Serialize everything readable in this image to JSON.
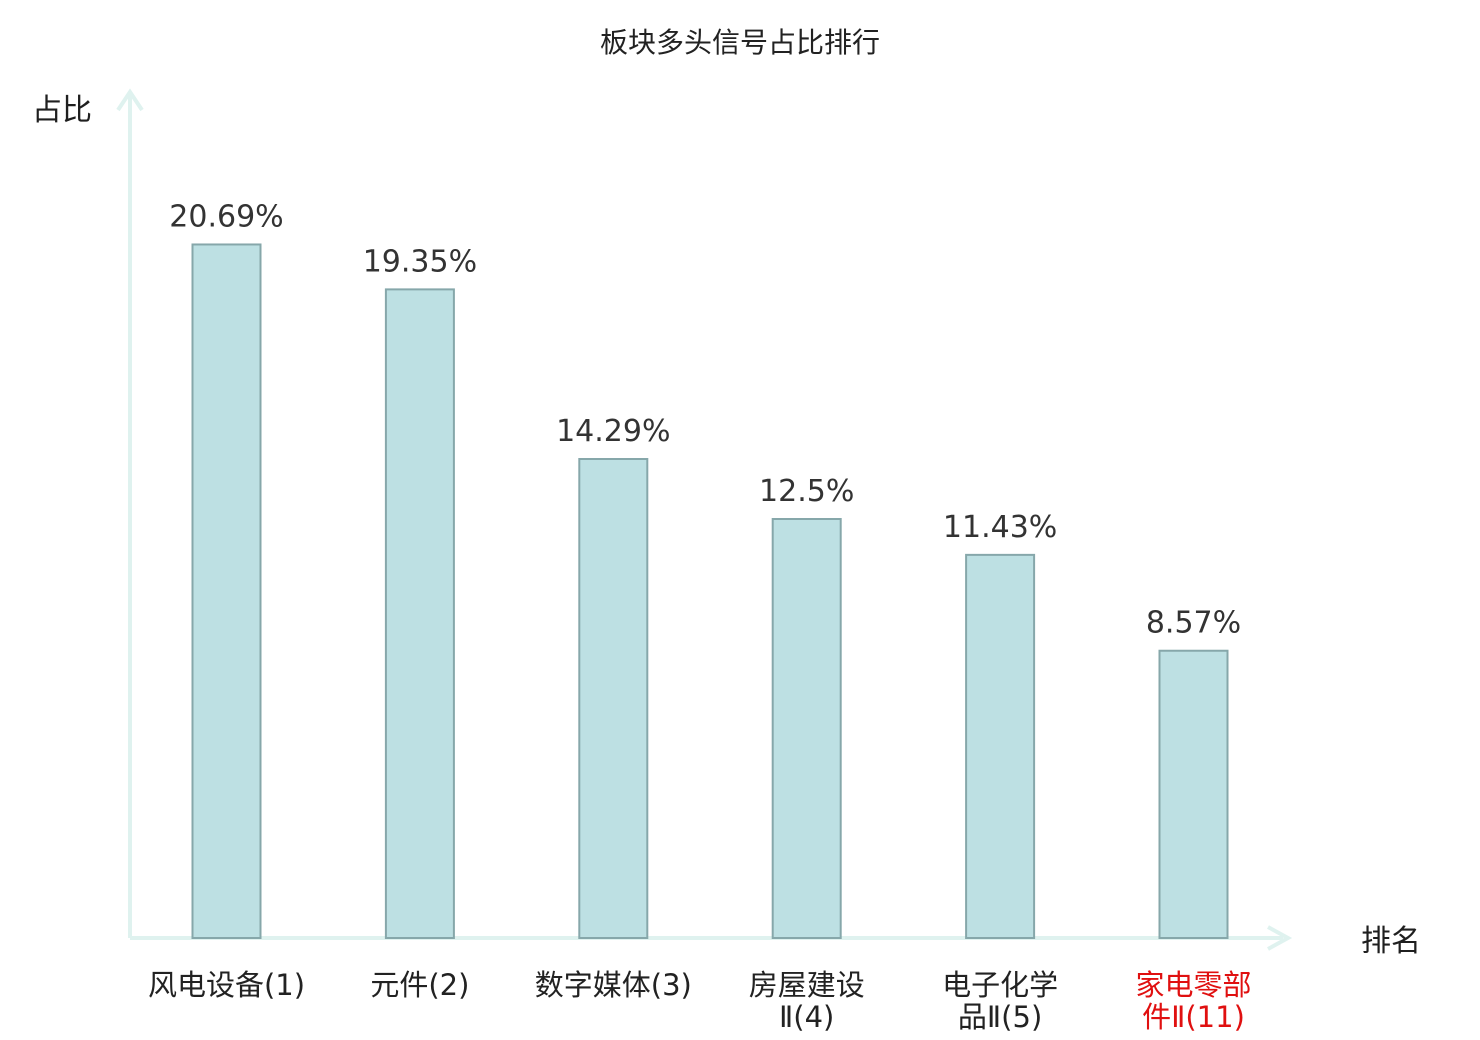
{
  "chart_data": {
    "type": "bar",
    "title": "板块多头信号占比排行",
    "xlabel": "排名",
    "ylabel": "占比",
    "categories": [
      [
        "风电设备(1)"
      ],
      [
        "元件(2)"
      ],
      [
        "数字媒体(3)"
      ],
      [
        "房屋建设",
        "Ⅱ(4)"
      ],
      [
        "电子化学",
        "品Ⅱ(5)"
      ],
      [
        "家电零部",
        "件Ⅱ(11)"
      ]
    ],
    "values": [
      20.69,
      19.35,
      14.29,
      12.5,
      11.43,
      8.57
    ],
    "value_labels": [
      "20.69%",
      "19.35%",
      "14.29%",
      "12.5%",
      "11.43%",
      "8.57%"
    ],
    "highlight_index": 5,
    "ylim": [
      0,
      25.0
    ],
    "grid": false,
    "colors": {
      "bar_fill": "#bde0e3",
      "bar_stroke": "#86a7aa",
      "axis": "#dff2ef",
      "text": "#222222",
      "value_text": "#333333",
      "highlight": "#e01010"
    }
  }
}
